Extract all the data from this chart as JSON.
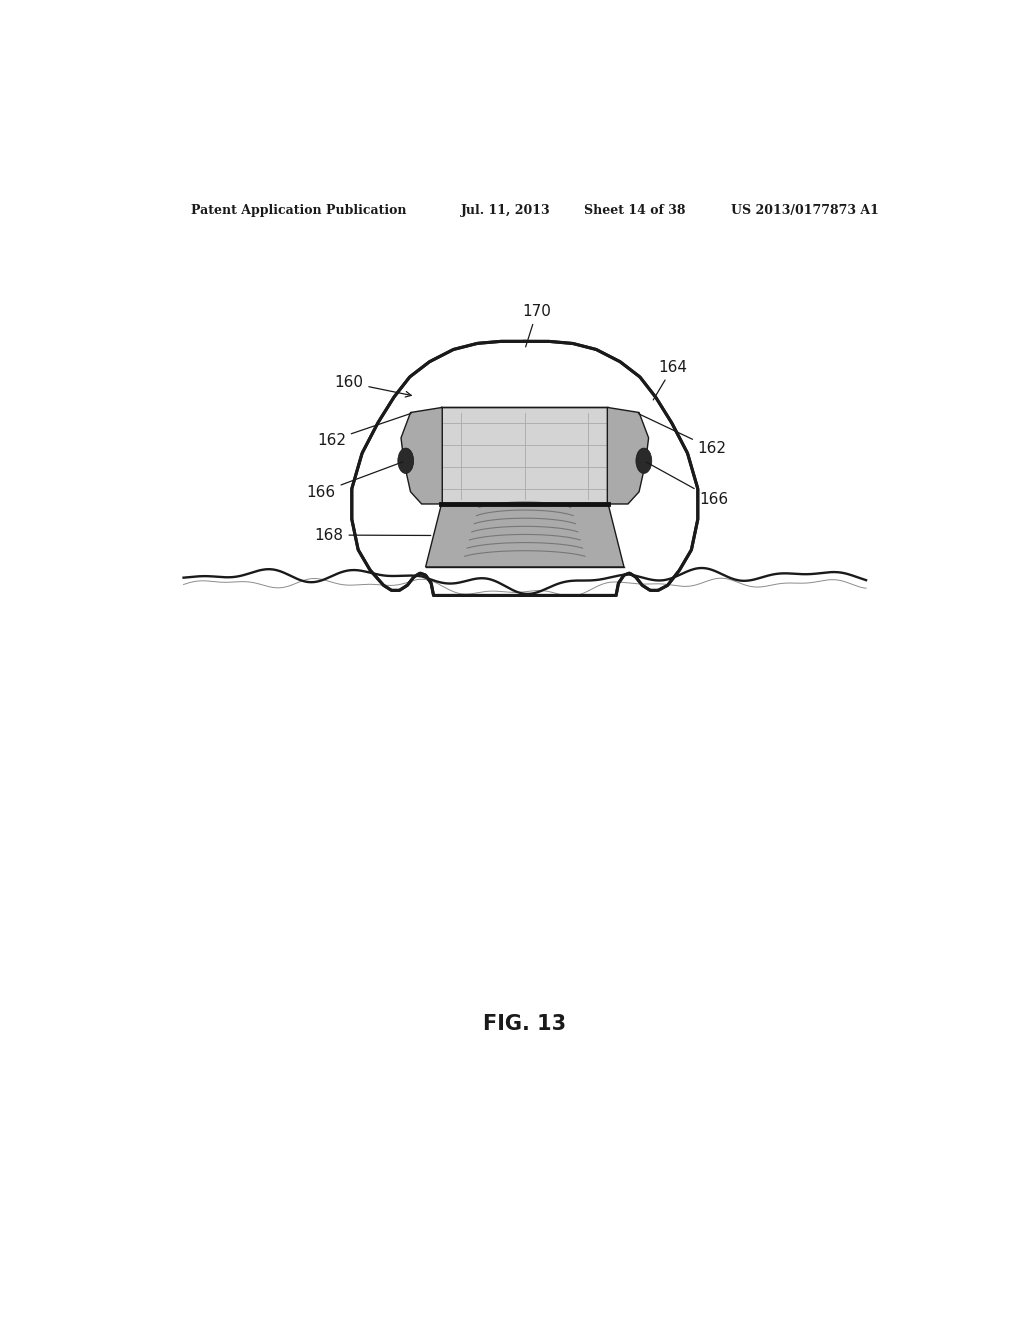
{
  "bg_color": "#ffffff",
  "line_color": "#1a1a1a",
  "fill_light": "#d4d4d4",
  "fill_medium": "#aaaaaa",
  "fill_dark": "#707070",
  "header_text": "Patent Application Publication",
  "header_date": "Jul. 11, 2013",
  "header_sheet": "Sheet 14 of 38",
  "header_patent": "US 2013/0177873 A1",
  "fig_label": "FIG. 13"
}
